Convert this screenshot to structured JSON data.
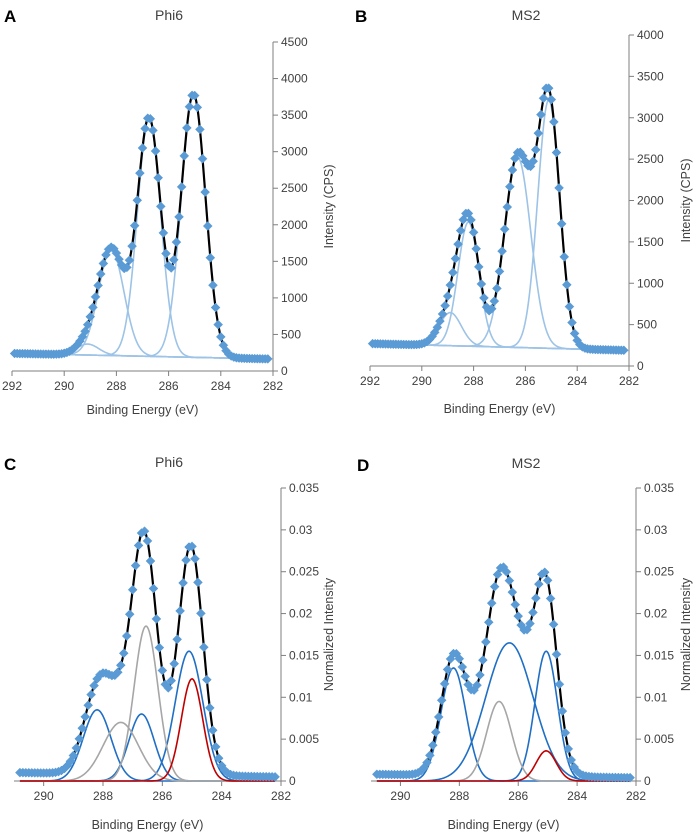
{
  "chart_data": [
    {
      "panel_letter": "A",
      "type": "line",
      "title": "Phi6",
      "xlabel": "Binding Energy (eV)",
      "ylabel": "Intensity (CPS)",
      "xlim": [
        292,
        282
      ],
      "ylim": [
        0,
        4500
      ],
      "x_ticks": [
        292,
        290,
        288,
        286,
        284,
        282
      ],
      "y_ticks": [
        0,
        500,
        1000,
        1500,
        2000,
        2500,
        3000,
        3500,
        4000,
        4500
      ],
      "x_range": [
        291.9,
        282.2
      ],
      "background": {
        "start": 240,
        "end": 165
      },
      "components": [
        {
          "name": "component 1",
          "center": 289.1,
          "height": 150,
          "fwhm": 1.0,
          "color": "#9dc3e6"
        },
        {
          "name": "component 2",
          "center": 288.2,
          "height": 1450,
          "fwhm": 1.15,
          "color": "#9dc3e6"
        },
        {
          "name": "component 3",
          "center": 286.75,
          "height": 3250,
          "fwhm": 1.05,
          "color": "#9dc3e6"
        },
        {
          "name": "component 4",
          "center": 285.05,
          "height": 3600,
          "fwhm": 1.1,
          "color": "#9dc3e6"
        }
      ],
      "envelope_color": "#000000",
      "data_marker_color": "#5b9bd5",
      "marker_step": 0.1
    },
    {
      "panel_letter": "B",
      "type": "line",
      "title": "MS2",
      "xlabel": "Binding Energy (eV)",
      "ylabel": "Intensity (CPS)",
      "xlim": [
        292,
        282
      ],
      "ylim": [
        0,
        4000
      ],
      "x_ticks": [
        292,
        290,
        288,
        286,
        284,
        282
      ],
      "y_ticks": [
        0,
        500,
        1000,
        1500,
        2000,
        2500,
        3000,
        3500,
        4000
      ],
      "x_range": [
        291.9,
        282.2
      ],
      "background": {
        "start": 270,
        "end": 190
      },
      "components": [
        {
          "name": "component 1",
          "center": 288.9,
          "height": 400,
          "fwhm": 1.0,
          "color": "#9dc3e6"
        },
        {
          "name": "component 2",
          "center": 288.2,
          "height": 1500,
          "fwhm": 0.95,
          "color": "#9dc3e6"
        },
        {
          "name": "component 3",
          "center": 286.3,
          "height": 2300,
          "fwhm": 1.2,
          "color": "#9dc3e6"
        },
        {
          "name": "component 4",
          "center": 285.1,
          "height": 3000,
          "fwhm": 1.0,
          "color": "#9dc3e6"
        }
      ],
      "envelope_color": "#000000",
      "data_marker_color": "#5b9bd5",
      "marker_step": 0.1
    },
    {
      "panel_letter": "C",
      "type": "line",
      "title": "Phi6",
      "xlabel": "Binding Energy (eV)",
      "ylabel": "Normalized Intensity",
      "xlim": [
        291,
        282
      ],
      "ylim": [
        0,
        0.035
      ],
      "x_ticks": [
        290,
        288,
        286,
        284,
        282
      ],
      "y_ticks": [
        0,
        0.005,
        0.01,
        0.015,
        0.02,
        0.025,
        0.03,
        0.035
      ],
      "x_range": [
        290.8,
        282.2
      ],
      "background": {
        "start": 0.001,
        "end": 0.0005
      },
      "components": [
        {
          "name": "blue component a",
          "center": 288.2,
          "height": 0.0085,
          "fwhm": 1.1,
          "color": "#1f6fc5"
        },
        {
          "name": "blue component b",
          "center": 286.7,
          "height": 0.008,
          "fwhm": 1.0,
          "color": "#1f6fc5"
        },
        {
          "name": "blue component c",
          "center": 285.1,
          "height": 0.0155,
          "fwhm": 1.1,
          "color": "#1f6fc5"
        },
        {
          "name": "gray component a",
          "center": 287.4,
          "height": 0.007,
          "fwhm": 1.4,
          "color": "#a6a6a6"
        },
        {
          "name": "gray component b",
          "center": 286.55,
          "height": 0.0185,
          "fwhm": 0.95,
          "color": "#a6a6a6"
        },
        {
          "name": "red component",
          "center": 285.0,
          "height": 0.0122,
          "fwhm": 0.85,
          "color": "#c00000"
        }
      ],
      "envelope_color": "#000000",
      "data_marker_color": "#5b9bd5",
      "marker_step": 0.1
    },
    {
      "panel_letter": "D",
      "type": "line",
      "title": "MS2",
      "xlabel": "Binding Energy (eV)",
      "ylabel": "Normalized Intensity",
      "xlim": [
        291,
        282
      ],
      "ylim": [
        0,
        0.035
      ],
      "x_ticks": [
        290,
        288,
        286,
        284,
        282
      ],
      "y_ticks": [
        0,
        0.005,
        0.01,
        0.015,
        0.02,
        0.025,
        0.03,
        0.035
      ],
      "x_range": [
        290.8,
        282.2
      ],
      "background": {
        "start": 0.0008,
        "end": 0.0004
      },
      "components": [
        {
          "name": "blue component a",
          "center": 288.2,
          "height": 0.0135,
          "fwhm": 1.0,
          "color": "#1f6fc5"
        },
        {
          "name": "blue component b",
          "center": 286.3,
          "height": 0.0165,
          "fwhm": 1.9,
          "color": "#1f6fc5"
        },
        {
          "name": "blue component c",
          "center": 285.05,
          "height": 0.0155,
          "fwhm": 0.9,
          "color": "#1f6fc5"
        },
        {
          "name": "gray component",
          "center": 286.65,
          "height": 0.0095,
          "fwhm": 1.0,
          "color": "#a6a6a6"
        },
        {
          "name": "red component",
          "center": 285.05,
          "height": 0.0036,
          "fwhm": 0.8,
          "color": "#c00000"
        }
      ],
      "envelope_color": "#000000",
      "data_marker_color": "#5b9bd5",
      "marker_step": 0.1
    }
  ]
}
